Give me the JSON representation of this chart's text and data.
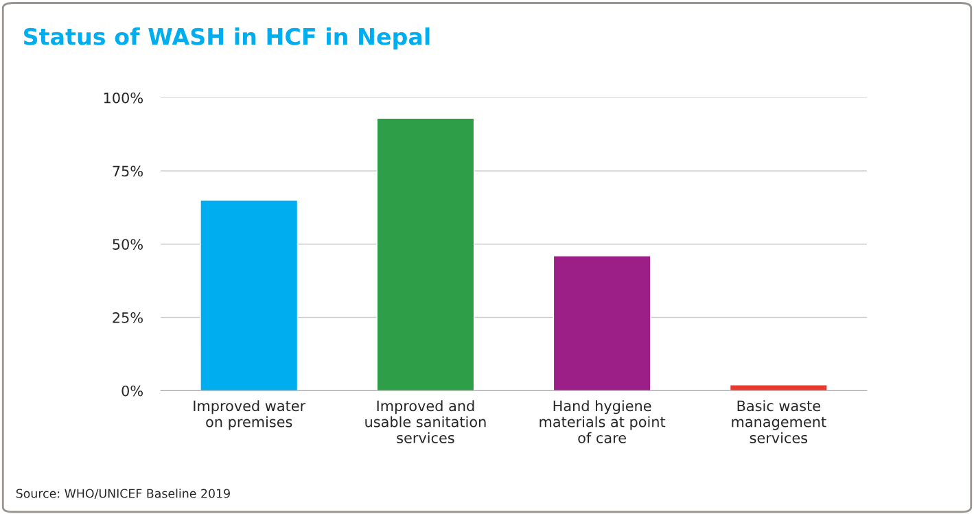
{
  "chart_data": {
    "type": "bar",
    "title": "Status of WASH in HCF in Nepal",
    "categories": [
      "Improved water\non premises",
      "Improved and\nusable sanitation\nservices",
      "Hand hygiene\nmaterials at point\nof care",
      "Basic waste\nmanagement\nservices"
    ],
    "values": [
      65,
      93,
      46,
      2
    ],
    "colors": [
      "#00aeef",
      "#2e9e48",
      "#9b1f87",
      "#e8392f"
    ],
    "ylim": [
      0,
      100
    ],
    "yticks": [
      {
        "value": 0,
        "label": "0%"
      },
      {
        "value": 25,
        "label": "25%"
      },
      {
        "value": 50,
        "label": "50%"
      },
      {
        "value": 75,
        "label": "75%"
      },
      {
        "value": 100,
        "label": "100%"
      }
    ],
    "grid": "y",
    "annotations": [
      "Source: WHO/UNICEF Baseline 2019"
    ]
  }
}
